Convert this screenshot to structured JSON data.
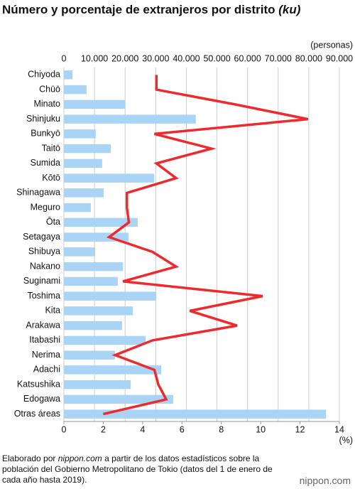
{
  "chart_data": {
    "type": "bar-line",
    "title": "Número y porcentaje de extranjeros por distrito",
    "title_italic": "(ku)",
    "x_unit": "(personas)",
    "x2_unit": "(%)",
    "categories": [
      "Chiyoda",
      "Chūō",
      "Minato",
      "Shinjuku",
      "Bunkyō",
      "Taitō",
      "Sumida",
      "Kōtō",
      "Shinagawa",
      "Meguro",
      "Ōta",
      "Setagaya",
      "Shibuya",
      "Nakano",
      "Suginami",
      "Toshima",
      "Kita",
      "Arakawa",
      "Itabashi",
      "Nerima",
      "Adachi",
      "Katsushika",
      "Edogawa",
      "Otras áreas"
    ],
    "series": [
      {
        "type": "bar",
        "color": "#aad4f5",
        "values": [
          2800,
          7400,
          20000,
          43100,
          10400,
          15300,
          12500,
          29500,
          13000,
          8800,
          24100,
          21100,
          10200,
          19300,
          17600,
          30200,
          22500,
          19000,
          26700,
          16700,
          31800,
          21800,
          35700,
          85600
        ]
      },
      {
        "type": "line",
        "axis": "x2",
        "color": "#ee2a2e",
        "values": [
          4.7,
          4.7,
          8.7,
          12.4,
          4.6,
          7.5,
          4.7,
          5.7,
          3.2,
          3.2,
          3.3,
          2.3,
          4.5,
          5.7,
          3.0,
          10.1,
          6.4,
          8.8,
          4.5,
          2.6,
          4.6,
          4.8,
          5.2,
          2.0
        ]
      }
    ],
    "xlim": [
      0,
      90000
    ],
    "xticks": [
      0,
      {
        "value": 10000,
        "label": "10.000"
      },
      {
        "value": 20000,
        "label": "20.000"
      },
      {
        "value": 30000,
        "label": "30.000"
      },
      {
        "value": 40000,
        "label": "40.000"
      },
      {
        "value": 50000,
        "label": "50.000"
      },
      {
        "value": 60000,
        "label": "60.000"
      },
      {
        "value": 70000,
        "label": "70.000"
      },
      {
        "value": 80000,
        "label": "80.000"
      },
      {
        "value": 90000,
        "label": "90.000"
      }
    ],
    "x2lim": [
      0,
      14
    ],
    "x2ticks": [
      0,
      2,
      4,
      6,
      8,
      10,
      12,
      14
    ],
    "grid": true,
    "source": [
      "Elaborado por ",
      "nippon.com",
      " a partir de los datos estadísticos sobre la población del Gobierno Metropolitano de Tokio (datos del 1 de enero de cada año hasta 2019)."
    ],
    "logo": "nippon.com"
  }
}
